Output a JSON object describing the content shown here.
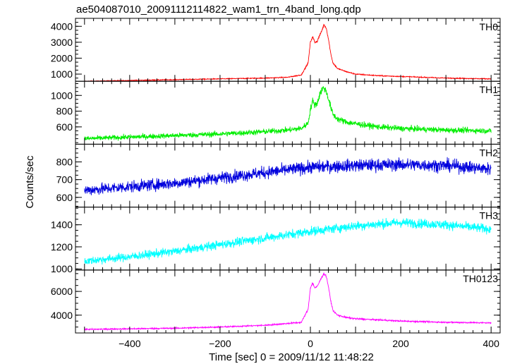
{
  "figure": {
    "title": "ae504087010_20091112114822_wam1_trn_4band_long.qdp",
    "ylabel": "Counts/sec",
    "xlabel": "Time [sec] 0 = 2009/11/12 11:48:22"
  },
  "chart_data": {
    "type": "line",
    "title": "ae504087010_20091112114822_wam1_trn_4band_long.qdp",
    "xlabel": "Time [sec] 0 = 2009/11/12 11:48:22",
    "ylabel": "Counts/sec",
    "xlim": [
      -520,
      420
    ],
    "xticks": [
      -400,
      -200,
      0,
      200,
      400
    ],
    "xtick_labels": [
      "−400",
      "−200",
      "0",
      "200",
      "400"
    ],
    "grid": false,
    "panels": [
      {
        "name": "TH0",
        "color": "#ff0000",
        "ylim": [
          550,
          4500
        ],
        "yticks": [
          1000,
          2000,
          3000,
          4000
        ],
        "ytick_labels": [
          "1000",
          "2000",
          "3000",
          "4000"
        ],
        "x": [
          -500,
          -400,
          -300,
          -200,
          -100,
          -50,
          -20,
          -5,
          0,
          5,
          10,
          15,
          20,
          25,
          30,
          35,
          40,
          45,
          50,
          60,
          80,
          100,
          150,
          200,
          300,
          400
        ],
        "y": [
          550,
          600,
          650,
          700,
          750,
          800,
          950,
          1700,
          3000,
          3350,
          3000,
          3050,
          3400,
          3700,
          4100,
          3900,
          3200,
          2300,
          1700,
          1350,
          1150,
          1000,
          900,
          850,
          750,
          700
        ]
      },
      {
        "name": "TH1",
        "color": "#00ee00",
        "ylim": [
          380,
          1180
        ],
        "yticks": [
          600,
          800,
          1000
        ],
        "ytick_labels": [
          "600",
          "800",
          "1000"
        ],
        "x": [
          -500,
          -400,
          -300,
          -200,
          -100,
          -50,
          -20,
          -5,
          0,
          5,
          10,
          15,
          20,
          25,
          30,
          35,
          40,
          45,
          50,
          60,
          80,
          100,
          150,
          200,
          300,
          400
        ],
        "y": [
          450,
          470,
          490,
          510,
          540,
          560,
          580,
          650,
          820,
          930,
          880,
          900,
          1000,
          1070,
          1100,
          1050,
          960,
          850,
          760,
          700,
          660,
          640,
          600,
          580,
          560,
          550
        ]
      },
      {
        "name": "TH2",
        "color": "#0000dd",
        "ylim": [
          545,
          900
        ],
        "yticks": [
          600,
          700,
          800
        ],
        "ytick_labels": [
          "600",
          "700",
          "800"
        ],
        "x": [
          -500,
          -400,
          -300,
          -200,
          -100,
          0,
          100,
          200,
          300,
          400
        ],
        "y": [
          640,
          660,
          680,
          710,
          740,
          770,
          780,
          785,
          780,
          760
        ]
      },
      {
        "name": "TH3",
        "color": "#00ffff",
        "ylim": [
          990,
          1560
        ],
        "yticks": [
          1000,
          1200,
          1400
        ],
        "ytick_labels": [
          "1000",
          "1200",
          "1400"
        ],
        "x": [
          -500,
          -400,
          -300,
          -200,
          -100,
          0,
          100,
          200,
          300,
          400
        ],
        "y": [
          1070,
          1110,
          1160,
          1220,
          1280,
          1340,
          1390,
          1420,
          1400,
          1360
        ]
      },
      {
        "name": "TH0123",
        "color": "#ff00ff",
        "ylim": [
          2500,
          7800
        ],
        "yticks": [
          4000,
          6000
        ],
        "ytick_labels": [
          "4000",
          "6000"
        ],
        "x": [
          -500,
          -400,
          -300,
          -200,
          -100,
          -50,
          -20,
          -5,
          0,
          5,
          10,
          15,
          20,
          25,
          30,
          35,
          40,
          45,
          50,
          60,
          80,
          100,
          150,
          200,
          300,
          400
        ],
        "y": [
          2800,
          2850,
          2900,
          3000,
          3150,
          3300,
          3400,
          4500,
          6300,
          6700,
          6300,
          6400,
          6800,
          7200,
          7500,
          7300,
          6400,
          5200,
          4400,
          4000,
          3800,
          3700,
          3600,
          3500,
          3400,
          3350
        ]
      }
    ]
  }
}
